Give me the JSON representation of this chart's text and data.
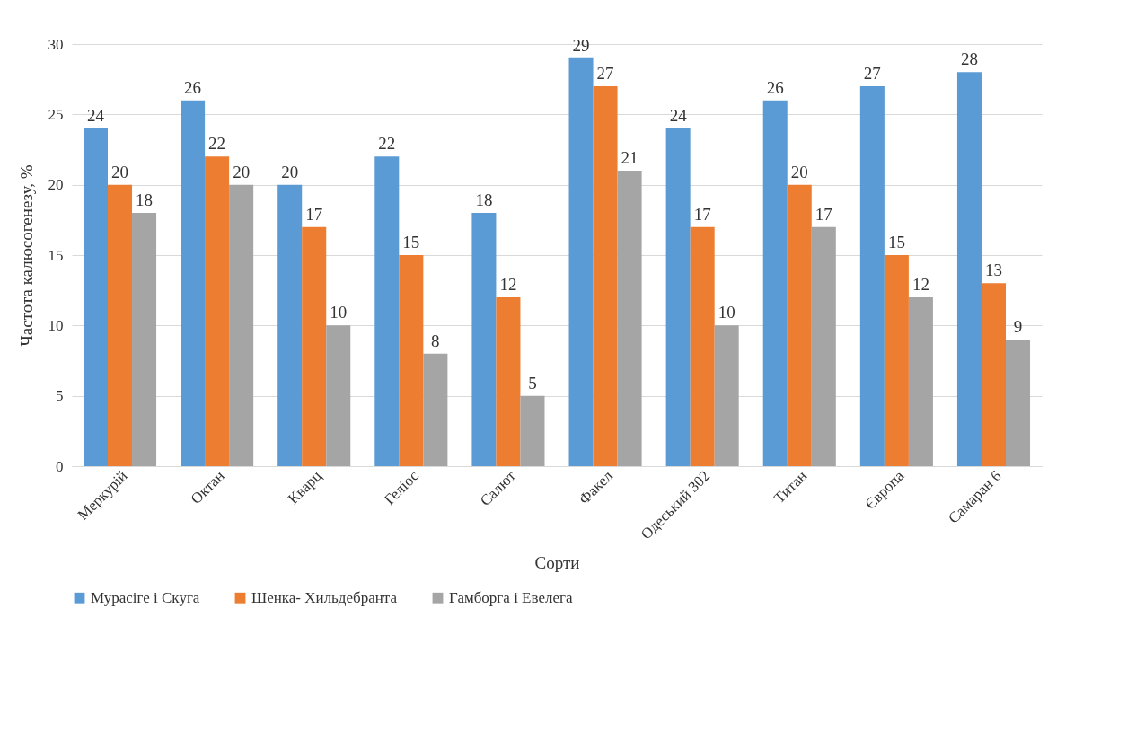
{
  "chart_data": {
    "type": "bar",
    "xlabel": "Сорти",
    "ylabel": "Частота калюсогенезу, %",
    "categories": [
      "Меркурій",
      "Октан",
      "Кварц",
      "Геліос",
      "Салют",
      "Факел",
      "Одеський 302",
      "Титан",
      "Європа",
      "Самаран 6"
    ],
    "series": [
      {
        "name": "Мурасіге і Скуга",
        "color": "#5b9bd5",
        "values": [
          24,
          26,
          20,
          22,
          18,
          29,
          24,
          26,
          27,
          28
        ]
      },
      {
        "name": "Шенка- Хильдебранта",
        "color": "#ed7d31",
        "values": [
          20,
          22,
          17,
          15,
          12,
          27,
          17,
          20,
          15,
          13
        ]
      },
      {
        "name": "Гамборга і Евелега",
        "color": "#a5a5a5",
        "values": [
          18,
          20,
          10,
          8,
          5,
          21,
          10,
          17,
          12,
          9
        ]
      }
    ],
    "ylim": [
      0,
      30
    ],
    "yticks": [
      0,
      5,
      10,
      15,
      20,
      25,
      30
    ],
    "grid": "y",
    "legend": "bottom",
    "data_labels": true
  }
}
